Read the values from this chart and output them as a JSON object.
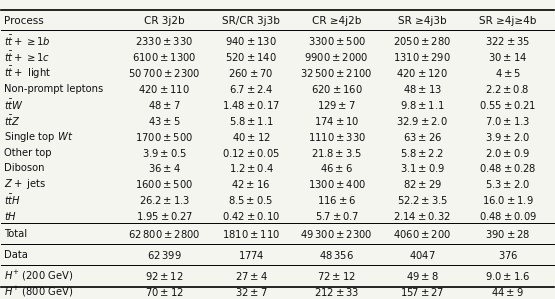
{
  "columns": [
    "Process",
    "CR 3j2b",
    "SR/CR 3j3b",
    "CR ≥4j2b",
    "SR ≥4j3b",
    "SR ≥4j≥4b"
  ],
  "rows": [
    [
      "$t\\bar{t}+\\geq1b$",
      "$2330\\pm330$",
      "$940\\pm130$",
      "$3300\\pm500$",
      "$2050\\pm280$",
      "$322\\pm35$"
    ],
    [
      "$t\\bar{t}+\\geq1c$",
      "$6100\\pm1300$",
      "$520\\pm140$",
      "$9900\\pm2000$",
      "$1310\\pm290$",
      "$30\\pm14$"
    ],
    [
      "$t\\bar{t}+$ light",
      "$50\\,700\\pm2300$",
      "$260\\pm70$",
      "$32\\,500\\pm2100$",
      "$420\\pm120$",
      "$4\\pm5$"
    ],
    [
      "Non-prompt leptons",
      "$420\\pm110$",
      "$6.7\\pm2.4$",
      "$620\\pm160$",
      "$48\\pm13$",
      "$2.2\\pm0.8$"
    ],
    [
      "$t\\bar{t}W$",
      "$48\\pm7$",
      "$1.48\\pm0.17$",
      "$129\\pm7$",
      "$9.8\\pm1.1$",
      "$0.55\\pm0.21$"
    ],
    [
      "$t\\bar{t}Z$",
      "$43\\pm5$",
      "$5.8\\pm1.1$",
      "$174\\pm10$",
      "$32.9\\pm2.0$",
      "$7.0\\pm1.3$"
    ],
    [
      "Single top $Wt$",
      "$1700\\pm500$",
      "$40\\pm12$",
      "$1110\\pm330$",
      "$63\\pm26$",
      "$3.9\\pm2.0$"
    ],
    [
      "Other top",
      "$3.9\\pm0.5$",
      "$0.12\\pm0.05$",
      "$21.8\\pm3.5$",
      "$5.8\\pm2.2$",
      "$2.0\\pm0.9$"
    ],
    [
      "Diboson",
      "$36\\pm4$",
      "$1.2\\pm0.4$",
      "$46\\pm6$",
      "$3.1\\pm0.9$",
      "$0.48\\pm0.28$"
    ],
    [
      "$Z+$ jets",
      "$1600\\pm500$",
      "$42\\pm16$",
      "$1300\\pm400$",
      "$82\\pm29$",
      "$5.3\\pm2.0$"
    ],
    [
      "$t\\bar{t}H$",
      "$26.2\\pm1.3$",
      "$8.5\\pm0.5$",
      "$116\\pm6$",
      "$52.2\\pm3.5$",
      "$16.0\\pm1.9$"
    ],
    [
      "$tH$",
      "$1.95\\pm0.27$",
      "$0.42\\pm0.10$",
      "$5.7\\pm0.7$",
      "$2.14\\pm0.32$",
      "$0.48\\pm0.09$"
    ]
  ],
  "total_row": [
    "Total",
    "$62\\,800\\pm2800$",
    "$1810\\pm110$",
    "$49\\,300\\pm2300$",
    "$4060\\pm200$",
    "$390\\pm28$"
  ],
  "data_row": [
    "Data",
    "$62\\,399$",
    "$1774$",
    "$48\\,356$",
    "$4047$",
    "$376$"
  ],
  "signal_rows": [
    [
      "$H^{+}$ (200 GeV)",
      "$92\\pm12$",
      "$27\\pm4$",
      "$72\\pm12$",
      "$49\\pm8$",
      "$9.0\\pm1.6$"
    ],
    [
      "$H^{+}$ (800 GeV)",
      "$70\\pm12$",
      "$32\\pm7$",
      "$212\\pm33$",
      "$157\\pm27$",
      "$44\\pm9$"
    ]
  ],
  "bg_color": "#f5f5f0",
  "text_color": "#111111",
  "fontsize": 7.2,
  "header_fontsize": 7.5
}
